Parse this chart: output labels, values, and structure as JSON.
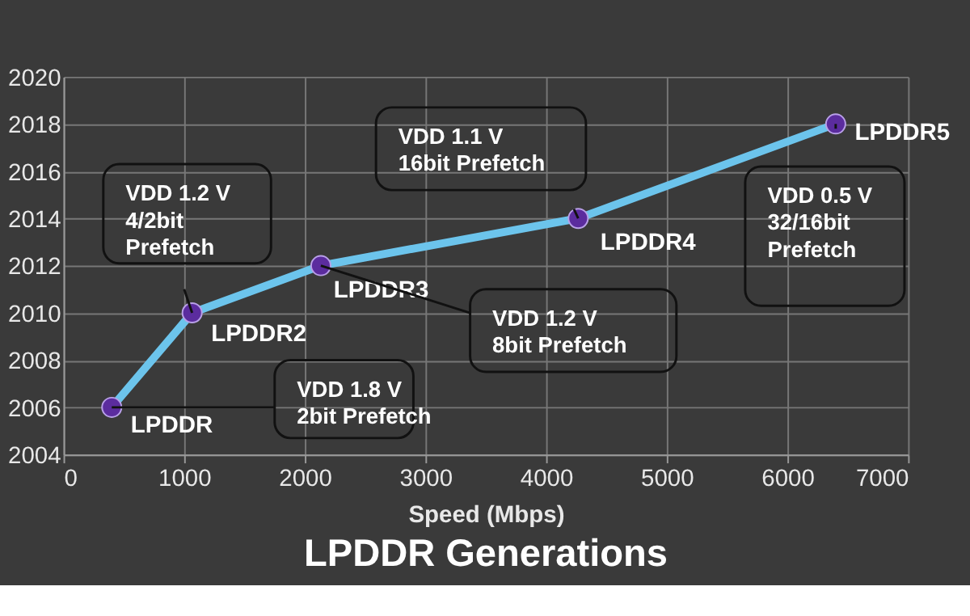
{
  "chart_data": {
    "type": "line",
    "title": "LPDDR Generations",
    "xlabel": "Speed (Mbps)",
    "x": [
      400,
      1066,
      2133,
      4266,
      6400
    ],
    "series": [
      {
        "color": "#6cc4ec",
        "values": [
          2006,
          2010,
          2012,
          2014,
          2018
        ]
      }
    ],
    "xlim": [
      0,
      7000
    ],
    "xticks": [
      0,
      1000,
      2000,
      3000,
      4000,
      5000,
      6000,
      7000
    ],
    "ylim": [
      2004,
      2020
    ],
    "yticks": [
      2004,
      2006,
      2008,
      2010,
      2012,
      2014,
      2016,
      2018,
      2020
    ],
    "grid": true,
    "marker": "circle",
    "line_style": "solid",
    "legend": false,
    "annotations": [
      {
        "text": "LPDDR",
        "x": 400,
        "y": 2006
      },
      {
        "text": "LPDDR2",
        "x": 1066,
        "y": 2010
      },
      {
        "text": "LPDDR3",
        "x": 2133,
        "y": 2012
      },
      {
        "text": "LPDDR4",
        "x": 4266,
        "y": 2014
      },
      {
        "text": "LPDDR5",
        "x": 6400,
        "y": 2018
      },
      {
        "text": "VDD 1.8 V\n2bit Prefetch",
        "x": 400,
        "y": 2006
      },
      {
        "text": "VDD 1.2 V\n4/2bit\nPrefetch",
        "x": 1066,
        "y": 2010
      },
      {
        "text": "VDD 1.2 V\n8bit Prefetch",
        "x": 2133,
        "y": 2012
      },
      {
        "text": "VDD 1.1 V\n16bit Prefetch",
        "x": 4266,
        "y": 2014
      },
      {
        "text": "VDD 0.5 V\n32/16bit\nPrefetch",
        "x": 6400,
        "y": 2018
      }
    ]
  }
}
